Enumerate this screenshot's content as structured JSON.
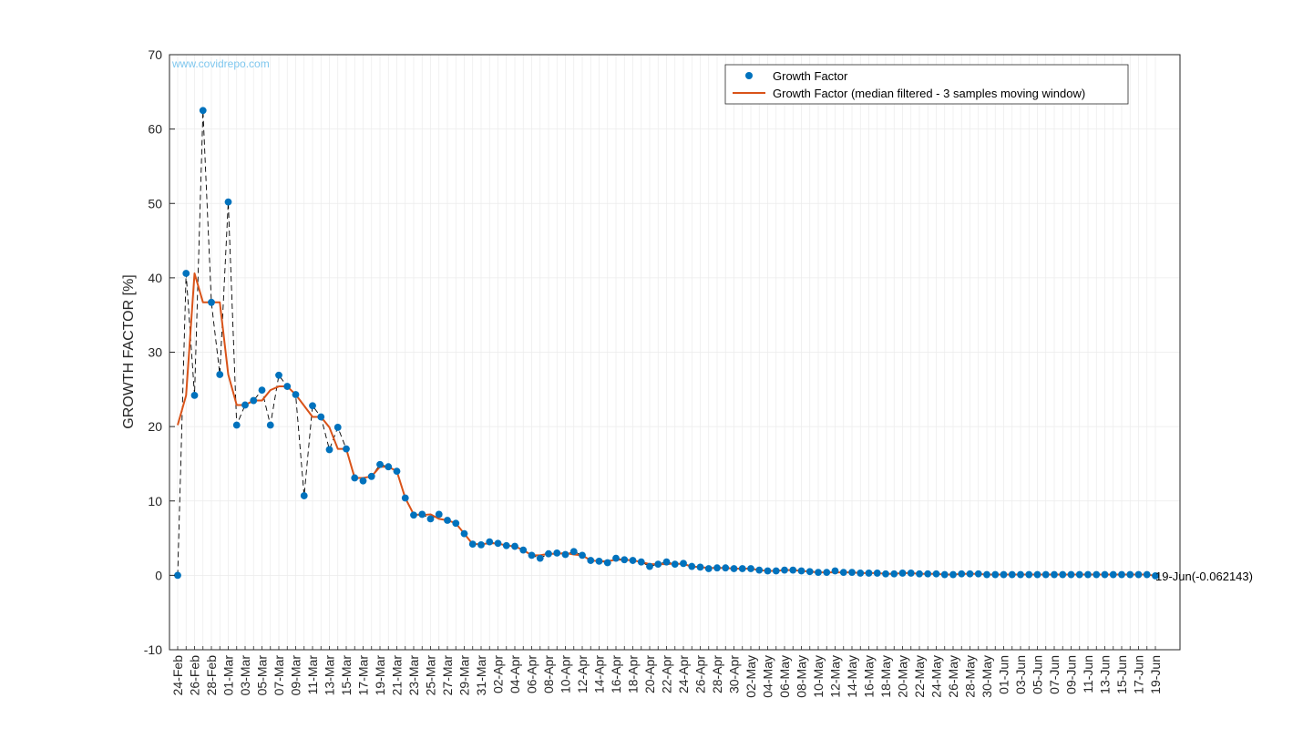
{
  "watermark": "www.covidrepo.com",
  "colors": {
    "points": "#0072bd",
    "median_line": "#d95319",
    "connector": "#000000",
    "grid": "#ebebeb",
    "axis": "#262626"
  },
  "chart_data": {
    "type": "line",
    "title": "",
    "xlabel": "",
    "ylabel": "GROWTH FACTOR [%]",
    "ylim": [
      -10,
      70
    ],
    "yticks": [
      -10,
      0,
      10,
      20,
      30,
      40,
      50,
      60,
      70
    ],
    "grid": true,
    "legend_position": "top-right",
    "x_start": "24-Feb",
    "x_end": "19-Jun",
    "x_tick_labels": [
      "24-Feb",
      "26-Feb",
      "28-Feb",
      "01-Mar",
      "03-Mar",
      "05-Mar",
      "07-Mar",
      "09-Mar",
      "11-Mar",
      "13-Mar",
      "15-Mar",
      "17-Mar",
      "19-Mar",
      "21-Mar",
      "23-Mar",
      "25-Mar",
      "27-Mar",
      "29-Mar",
      "31-Mar",
      "02-Apr",
      "04-Apr",
      "06-Apr",
      "08-Apr",
      "10-Apr",
      "12-Apr",
      "14-Apr",
      "16-Apr",
      "18-Apr",
      "20-Apr",
      "22-Apr",
      "24-Apr",
      "26-Apr",
      "28-Apr",
      "30-Apr",
      "02-May",
      "04-May",
      "06-May",
      "08-May",
      "10-May",
      "12-May",
      "14-May",
      "16-May",
      "18-May",
      "20-May",
      "22-May",
      "24-May",
      "26-May",
      "28-May",
      "30-May",
      "01-Jun",
      "03-Jun",
      "05-Jun",
      "07-Jun",
      "09-Jun",
      "11-Jun",
      "13-Jun",
      "15-Jun",
      "17-Jun",
      "19-Jun"
    ],
    "series": [
      {
        "name": "Growth Factor",
        "style": "markers",
        "values": [
          0,
          40.6,
          24.2,
          62.5,
          36.7,
          27,
          50.2,
          20.2,
          22.9,
          23.5,
          24.9,
          20.2,
          26.9,
          25.4,
          24.3,
          10.7,
          22.8,
          21.3,
          16.9,
          19.9,
          17,
          13.1,
          12.7,
          13.3,
          14.9,
          14.6,
          14,
          10.4,
          8.1,
          8.2,
          7.6,
          8.2,
          7.4,
          7,
          5.6,
          4.2,
          4.1,
          4.5,
          4.3,
          4,
          3.9,
          3.4,
          2.7,
          2.3,
          2.9,
          3,
          2.8,
          3.2,
          2.7,
          2,
          1.9,
          1.7,
          2.3,
          2.1,
          2,
          1.8,
          1.2,
          1.5,
          1.8,
          1.5,
          1.6,
          1.2,
          1.1,
          0.9,
          1,
          1,
          0.9,
          0.9,
          0.9,
          0.7,
          0.6,
          0.6,
          0.7,
          0.7,
          0.6,
          0.5,
          0.4,
          0.4,
          0.6,
          0.4,
          0.4,
          0.3,
          0.3,
          0.3,
          0.2,
          0.2,
          0.3,
          0.3,
          0.2,
          0.2,
          0.2,
          0.1,
          0.1,
          0.2,
          0.2,
          0.2,
          0.1,
          0.1,
          0.1,
          0.1,
          0.1,
          0.1,
          0.1,
          0.1,
          0.1,
          0.1,
          0.1,
          0.1,
          0.1,
          0.1,
          0.1,
          0.1,
          0.1,
          0.1,
          0.1,
          0.1,
          -0.062143
        ]
      },
      {
        "name": "Growth Factor (median filtered - 3 samples moving window)",
        "style": "line",
        "values": [
          20.2,
          24.2,
          40.6,
          36.7,
          36.7,
          36.7,
          27,
          22.9,
          22.9,
          23.5,
          23.5,
          24.9,
          25.4,
          25.4,
          24.3,
          22.8,
          21.3,
          21.3,
          19.9,
          17,
          17,
          13.1,
          13.1,
          13.3,
          14.6,
          14.6,
          14,
          10.4,
          8.2,
          8.1,
          8.2,
          7.6,
          7.4,
          7,
          5.6,
          4.2,
          4.2,
          4.3,
          4.3,
          4,
          3.9,
          3.4,
          2.7,
          2.7,
          2.9,
          2.9,
          3,
          2.8,
          2.7,
          2,
          1.9,
          1.9,
          2.1,
          2.1,
          2,
          1.8,
          1.5,
          1.5,
          1.5,
          1.6,
          1.5,
          1.2,
          1.1,
          1,
          1,
          1,
          0.9,
          0.9,
          0.9,
          0.7,
          0.6,
          0.6,
          0.7,
          0.7,
          0.6,
          0.5,
          0.4,
          0.4,
          0.4,
          0.4,
          0.4,
          0.3,
          0.3,
          0.3,
          0.2,
          0.2,
          0.3,
          0.3,
          0.2,
          0.2,
          0.2,
          0.1,
          0.1,
          0.2,
          0.2,
          0.2,
          0.1,
          0.1,
          0.1,
          0.1,
          0.1,
          0.1,
          0.1,
          0.1,
          0.1,
          0.1,
          0.1,
          0.1,
          0.1,
          0.1,
          0.1,
          0.1,
          0.1,
          0.1,
          0.1,
          0.1,
          -0.062143
        ]
      }
    ],
    "annotation": "19-Jun(-0.062143)"
  }
}
